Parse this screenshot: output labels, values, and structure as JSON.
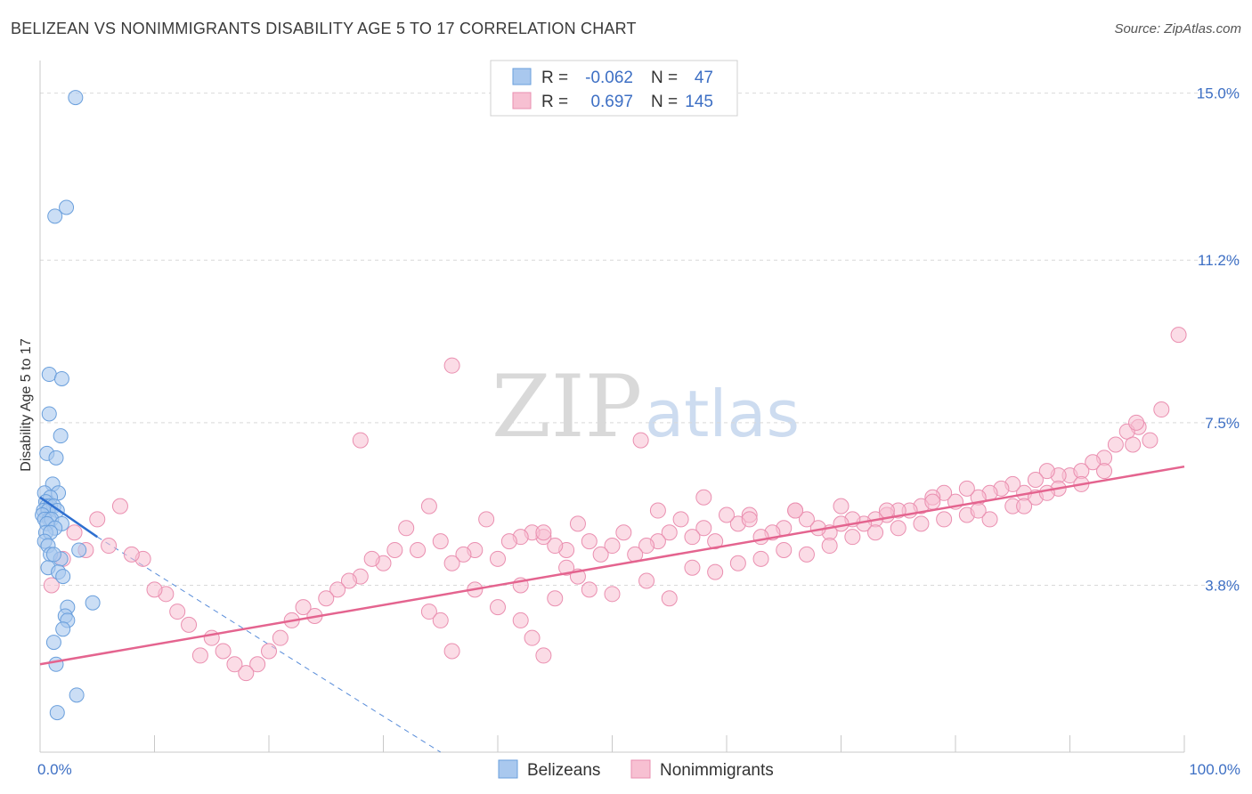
{
  "title": "BELIZEAN VS NONIMMIGRANTS DISABILITY AGE 5 TO 17 CORRELATION CHART",
  "source": "Source: ZipAtlas.com",
  "watermark": {
    "zip": "ZIP",
    "atlas": "atlas"
  },
  "colors": {
    "blue_fill": "#a9c8ee",
    "blue_stroke": "#6a9fdc",
    "blue_line": "#2e6fd0",
    "pink_fill": "#f7c0d2",
    "pink_stroke": "#ea8fb0",
    "pink_line": "#e4648f",
    "grid": "#d9d9d9",
    "axis_label": "#3d6fc4"
  },
  "legend": {
    "series1": {
      "r_label": "R =",
      "r_value": "-0.062",
      "n_label": "N =",
      "n_value": "47"
    },
    "series2": {
      "r_label": "R =",
      "r_value": "0.697",
      "n_label": "N =",
      "n_value": "145"
    }
  },
  "chart_data": {
    "type": "scatter",
    "title": "BELIZEAN VS NONIMMIGRANTS DISABILITY AGE 5 TO 17 CORRELATION CHART",
    "xlabel": "",
    "ylabel": "Disability Age 5 to 17",
    "xlim": [
      0,
      100
    ],
    "ylim": [
      0,
      15.5
    ],
    "x_tick_labels": [
      "0.0%",
      "100.0%"
    ],
    "y_ticks": [
      3.8,
      7.5,
      11.2,
      15.0
    ],
    "y_tick_labels": [
      "3.8%",
      "7.5%",
      "11.2%",
      "15.0%"
    ],
    "legend_placement": "bottom",
    "series": [
      {
        "name": "Belizeans",
        "trend": {
          "x": [
            0,
            5
          ],
          "y": [
            5.8,
            4.9
          ]
        },
        "trend_extension": {
          "x": [
            5,
            35
          ],
          "y": [
            4.9,
            0
          ]
        },
        "points": [
          [
            3.1,
            14.9
          ],
          [
            2.3,
            12.4
          ],
          [
            1.3,
            12.2
          ],
          [
            0.8,
            8.6
          ],
          [
            1.9,
            8.5
          ],
          [
            0.8,
            7.7
          ],
          [
            1.8,
            7.2
          ],
          [
            0.6,
            6.8
          ],
          [
            1.4,
            6.7
          ],
          [
            1.1,
            6.1
          ],
          [
            0.4,
            5.9
          ],
          [
            1.6,
            5.9
          ],
          [
            0.9,
            5.8
          ],
          [
            0.5,
            5.7
          ],
          [
            0.6,
            5.6
          ],
          [
            0.9,
            5.6
          ],
          [
            1.2,
            5.6
          ],
          [
            0.3,
            5.5
          ],
          [
            0.7,
            5.5
          ],
          [
            1.5,
            5.5
          ],
          [
            0.2,
            5.4
          ],
          [
            0.8,
            5.3
          ],
          [
            0.4,
            5.3
          ],
          [
            1.0,
            5.3
          ],
          [
            1.9,
            5.2
          ],
          [
            0.6,
            5.2
          ],
          [
            1.3,
            5.1
          ],
          [
            0.5,
            5.0
          ],
          [
            0.9,
            5.0
          ],
          [
            0.4,
            4.8
          ],
          [
            0.7,
            4.7
          ],
          [
            3.4,
            4.6
          ],
          [
            0.9,
            4.5
          ],
          [
            1.8,
            4.4
          ],
          [
            1.2,
            4.5
          ],
          [
            0.7,
            4.2
          ],
          [
            1.6,
            4.1
          ],
          [
            2.0,
            4.0
          ],
          [
            2.4,
            3.3
          ],
          [
            4.6,
            3.4
          ],
          [
            2.2,
            3.1
          ],
          [
            2.4,
            3.0
          ],
          [
            2.0,
            2.8
          ],
          [
            1.2,
            2.5
          ],
          [
            1.4,
            2.0
          ],
          [
            3.2,
            1.3
          ],
          [
            1.5,
            0.9
          ]
        ]
      },
      {
        "name": "Nonimmigrants",
        "trend": {
          "x": [
            0,
            100
          ],
          "y": [
            2.0,
            6.5
          ]
        },
        "points": [
          [
            36,
            8.8
          ],
          [
            99.5,
            9.5
          ],
          [
            28,
            7.1
          ],
          [
            52.5,
            7.1
          ],
          [
            98,
            7.8
          ],
          [
            96,
            7.4
          ],
          [
            95,
            7.3
          ],
          [
            94,
            7.0
          ],
          [
            95.5,
            7.0
          ],
          [
            93,
            6.7
          ],
          [
            92,
            6.6
          ],
          [
            90,
            6.3
          ],
          [
            91,
            6.4
          ],
          [
            89,
            6.3
          ],
          [
            88,
            6.4
          ],
          [
            87,
            6.2
          ],
          [
            86,
            5.9
          ],
          [
            85,
            6.1
          ],
          [
            84,
            6.0
          ],
          [
            83,
            5.9
          ],
          [
            82,
            5.8
          ],
          [
            81,
            6.0
          ],
          [
            80,
            5.7
          ],
          [
            79,
            5.9
          ],
          [
            78,
            5.8
          ],
          [
            77,
            5.6
          ],
          [
            76,
            5.5
          ],
          [
            75,
            5.5
          ],
          [
            74,
            5.4
          ],
          [
            73,
            5.3
          ],
          [
            72,
            5.2
          ],
          [
            71,
            5.3
          ],
          [
            70,
            5.2
          ],
          [
            69,
            5.0
          ],
          [
            68,
            5.1
          ],
          [
            67,
            5.3
          ],
          [
            66,
            5.5
          ],
          [
            65,
            5.1
          ],
          [
            64,
            5.0
          ],
          [
            63,
            4.9
          ],
          [
            62,
            5.4
          ],
          [
            61,
            5.2
          ],
          [
            60,
            5.4
          ],
          [
            59,
            4.8
          ],
          [
            58,
            5.1
          ],
          [
            57,
            4.9
          ],
          [
            56,
            5.3
          ],
          [
            55,
            5.0
          ],
          [
            54,
            4.8
          ],
          [
            53,
            4.7
          ],
          [
            52,
            4.5
          ],
          [
            51,
            5.0
          ],
          [
            50,
            4.7
          ],
          [
            49,
            4.5
          ],
          [
            48,
            4.8
          ],
          [
            47,
            5.2
          ],
          [
            46,
            4.6
          ],
          [
            45,
            4.7
          ],
          [
            44,
            4.9
          ],
          [
            43,
            5.0
          ],
          [
            42,
            4.9
          ],
          [
            41,
            4.8
          ],
          [
            40,
            4.4
          ],
          [
            39,
            5.3
          ],
          [
            38,
            4.6
          ],
          [
            37,
            4.5
          ],
          [
            36,
            4.3
          ],
          [
            35,
            4.8
          ],
          [
            34,
            5.6
          ],
          [
            33,
            4.6
          ],
          [
            32,
            5.1
          ],
          [
            31,
            4.6
          ],
          [
            30,
            4.3
          ],
          [
            29,
            4.4
          ],
          [
            28,
            4.0
          ],
          [
            27,
            3.9
          ],
          [
            26,
            3.7
          ],
          [
            25,
            3.5
          ],
          [
            24,
            3.1
          ],
          [
            23,
            3.3
          ],
          [
            22,
            3.0
          ],
          [
            21,
            2.6
          ],
          [
            20,
            2.3
          ],
          [
            19,
            2.0
          ],
          [
            18,
            1.8
          ],
          [
            17,
            2.0
          ],
          [
            16,
            2.3
          ],
          [
            15,
            2.6
          ],
          [
            14,
            2.2
          ],
          [
            13,
            2.9
          ],
          [
            12,
            3.2
          ],
          [
            11,
            3.6
          ],
          [
            10,
            3.7
          ],
          [
            9,
            4.4
          ],
          [
            8,
            4.5
          ],
          [
            7,
            5.6
          ],
          [
            6,
            4.7
          ],
          [
            5,
            5.3
          ],
          [
            4,
            4.6
          ],
          [
            3,
            5.0
          ],
          [
            2,
            4.4
          ],
          [
            1,
            3.8
          ],
          [
            34,
            3.2
          ],
          [
            42,
            3.8
          ],
          [
            45,
            3.5
          ],
          [
            47,
            4.0
          ],
          [
            50,
            3.6
          ],
          [
            53,
            3.9
          ],
          [
            55,
            3.5
          ],
          [
            57,
            4.2
          ],
          [
            59,
            4.1
          ],
          [
            61,
            4.3
          ],
          [
            63,
            4.4
          ],
          [
            65,
            4.6
          ],
          [
            67,
            4.5
          ],
          [
            69,
            4.7
          ],
          [
            71,
            4.9
          ],
          [
            73,
            5.0
          ],
          [
            75,
            5.1
          ],
          [
            77,
            5.2
          ],
          [
            79,
            5.3
          ],
          [
            81,
            5.4
          ],
          [
            83,
            5.3
          ],
          [
            85,
            5.6
          ],
          [
            87,
            5.8
          ],
          [
            89,
            6.0
          ],
          [
            91,
            6.1
          ],
          [
            93,
            6.4
          ],
          [
            97,
            7.1
          ],
          [
            95.8,
            7.5
          ],
          [
            44,
            5.0
          ],
          [
            46,
            4.2
          ],
          [
            48,
            3.7
          ],
          [
            38,
            3.7
          ],
          [
            40,
            3.3
          ],
          [
            42,
            3.0
          ],
          [
            43,
            2.6
          ],
          [
            44,
            2.2
          ],
          [
            36,
            2.3
          ],
          [
            35,
            3.0
          ],
          [
            54,
            5.5
          ],
          [
            58,
            5.8
          ],
          [
            62,
            5.3
          ],
          [
            66,
            5.5
          ],
          [
            70,
            5.6
          ],
          [
            74,
            5.5
          ],
          [
            78,
            5.7
          ],
          [
            82,
            5.5
          ],
          [
            86,
            5.6
          ],
          [
            88,
            5.9
          ]
        ]
      }
    ]
  },
  "bottom_legend": {
    "series1_label": "Belizeans",
    "series2_label": "Nonimmigrants"
  }
}
